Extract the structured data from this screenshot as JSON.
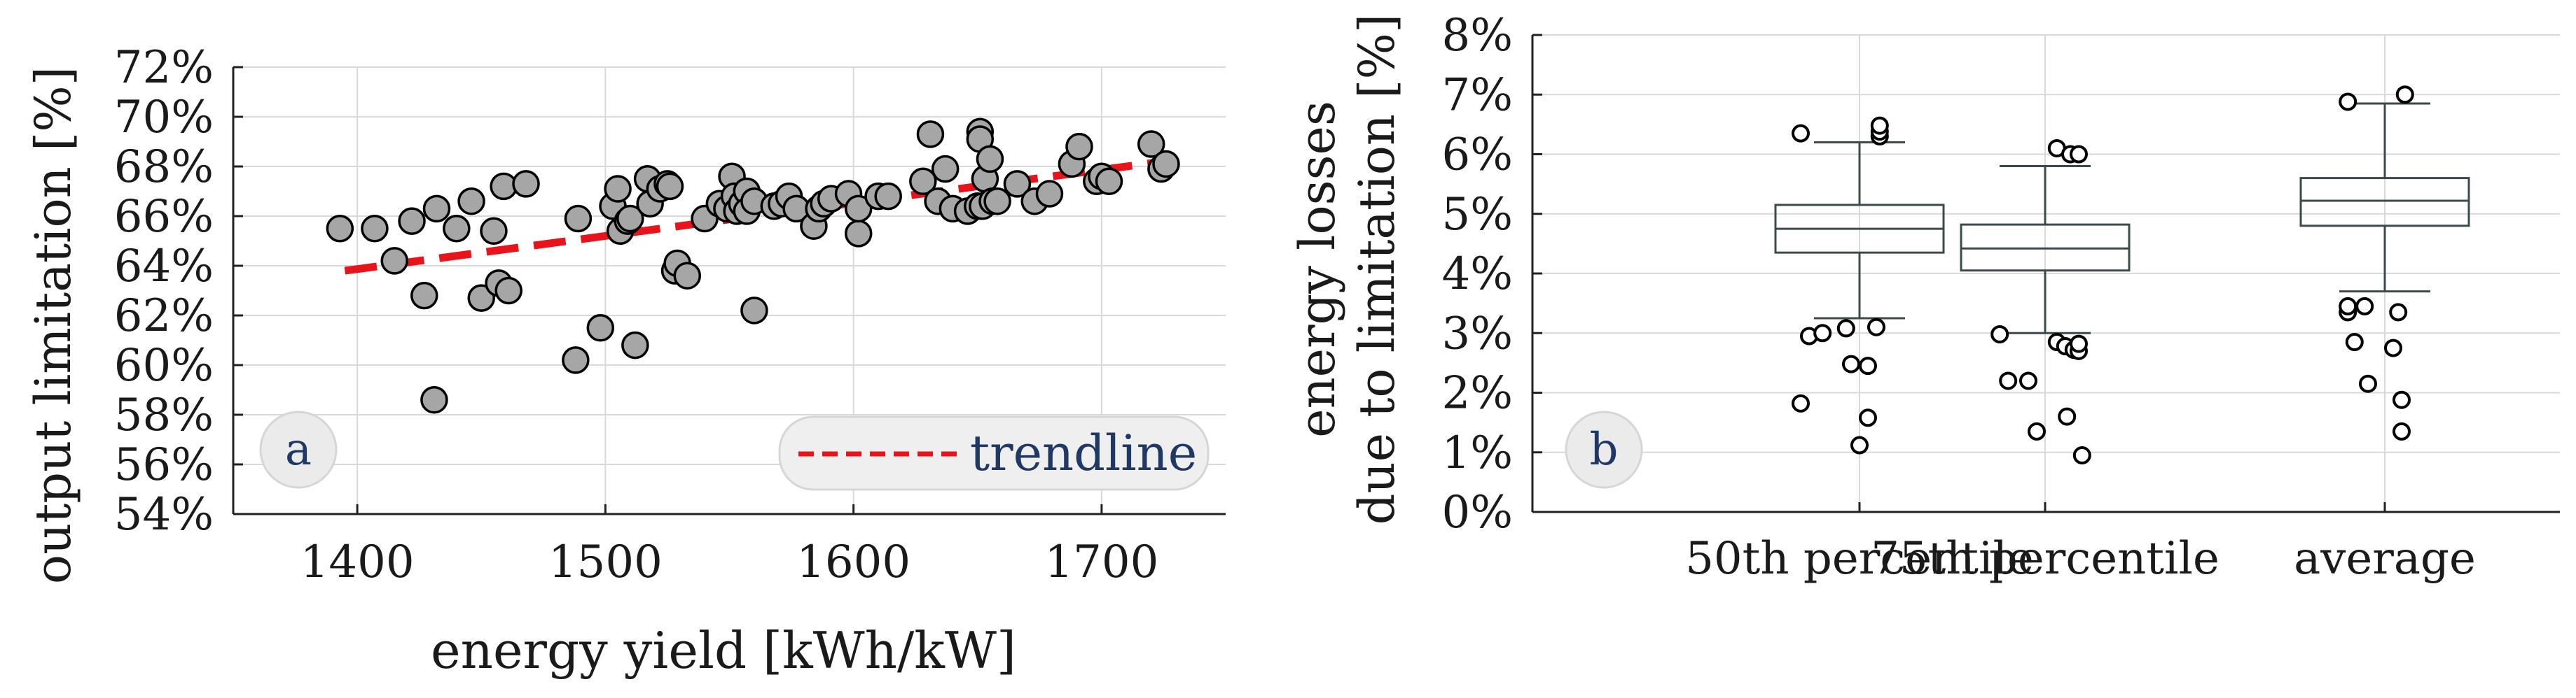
{
  "chart_data": [
    {
      "type": "scatter",
      "panel_label": "a",
      "xlabel": "energy yield [kWh/kW]",
      "ylabel": "output limitation [%]",
      "xlim": [
        1350,
        1750
      ],
      "ylim": [
        54,
        72
      ],
      "x_ticks": [
        1400,
        1500,
        1600,
        1700
      ],
      "x_tick_labels": [
        "1400",
        "1500",
        "1600",
        "1700"
      ],
      "y_ticks": [
        54,
        56,
        58,
        60,
        62,
        64,
        66,
        68,
        70,
        72
      ],
      "y_tick_labels": [
        "54%",
        "56%",
        "58%",
        "60%",
        "62%",
        "64%",
        "66%",
        "68%",
        "70%",
        "72%"
      ],
      "grid": true,
      "legend": {
        "position": "bottom-right",
        "entries": [
          "trendline"
        ]
      },
      "trendline": {
        "x": [
          1395,
          1725
        ],
        "y": [
          63.8,
          68.2
        ],
        "color": "#e8141b"
      },
      "points": [
        [
          1393,
          65.5
        ],
        [
          1407,
          65.5
        ],
        [
          1415,
          64.2
        ],
        [
          1422,
          65.8
        ],
        [
          1427,
          62.8
        ],
        [
          1431,
          58.6
        ],
        [
          1432,
          66.3
        ],
        [
          1440,
          65.5
        ],
        [
          1446,
          66.6
        ],
        [
          1450,
          62.7
        ],
        [
          1455,
          65.4
        ],
        [
          1457,
          63.3
        ],
        [
          1459,
          67.2
        ],
        [
          1461,
          63.0
        ],
        [
          1468,
          67.3
        ],
        [
          1488,
          60.2
        ],
        [
          1489,
          65.9
        ],
        [
          1498,
          61.5
        ],
        [
          1503,
          66.4
        ],
        [
          1505,
          67.1
        ],
        [
          1506,
          65.4
        ],
        [
          1509,
          65.8
        ],
        [
          1510,
          65.9
        ],
        [
          1512,
          60.8
        ],
        [
          1517,
          67.5
        ],
        [
          1518,
          66.5
        ],
        [
          1522,
          67.1
        ],
        [
          1525,
          67.3
        ],
        [
          1526,
          67.2
        ],
        [
          1528,
          63.8
        ],
        [
          1529,
          64.1
        ],
        [
          1533,
          63.6
        ],
        [
          1540,
          65.9
        ],
        [
          1546,
          66.5
        ],
        [
          1549,
          66.3
        ],
        [
          1551,
          67.6
        ],
        [
          1552,
          66.8
        ],
        [
          1553,
          66.2
        ],
        [
          1555,
          66.5
        ],
        [
          1557,
          67.0
        ],
        [
          1557,
          66.2
        ],
        [
          1560,
          66.6
        ],
        [
          1560,
          62.2
        ],
        [
          1568,
          66.4
        ],
        [
          1571,
          66.5
        ],
        [
          1574,
          66.8
        ],
        [
          1577,
          66.3
        ],
        [
          1584,
          65.6
        ],
        [
          1586,
          66.3
        ],
        [
          1588,
          66.5
        ],
        [
          1591,
          66.7
        ],
        [
          1598,
          66.9
        ],
        [
          1602,
          65.3
        ],
        [
          1602,
          66.3
        ],
        [
          1610,
          66.8
        ],
        [
          1614,
          66.8
        ],
        [
          1628,
          67.4
        ],
        [
          1631,
          69.3
        ],
        [
          1634,
          66.6
        ],
        [
          1637,
          67.9
        ],
        [
          1640,
          66.3
        ],
        [
          1646,
          66.2
        ],
        [
          1650,
          66.4
        ],
        [
          1651,
          69.4
        ],
        [
          1651,
          69.1
        ],
        [
          1652,
          66.4
        ],
        [
          1653,
          67.5
        ],
        [
          1655,
          68.3
        ],
        [
          1656,
          66.6
        ],
        [
          1658,
          66.6
        ],
        [
          1666,
          67.3
        ],
        [
          1673,
          66.6
        ],
        [
          1679,
          66.9
        ],
        [
          1688,
          68.1
        ],
        [
          1691,
          68.8
        ],
        [
          1698,
          67.4
        ],
        [
          1700,
          67.6
        ],
        [
          1703,
          67.4
        ],
        [
          1720,
          68.9
        ],
        [
          1724,
          67.9
        ],
        [
          1726,
          68.1
        ]
      ]
    },
    {
      "type": "box",
      "panel_label": "b",
      "ylabel_lines": [
        "energy losses",
        "due to limitation [%]"
      ],
      "ylim": [
        0,
        8
      ],
      "y_ticks": [
        0,
        1,
        2,
        3,
        4,
        5,
        6,
        7,
        8
      ],
      "y_tick_labels": [
        "0%",
        "1%",
        "2%",
        "3%",
        "4%",
        "5%",
        "6%",
        "7%",
        "8%"
      ],
      "grid": true,
      "categories": [
        "50th percentile",
        "75th percentile",
        "average"
      ],
      "boxes": [
        {
          "whisker_low": 3.25,
          "q1": 4.35,
          "median": 4.75,
          "q3": 5.15,
          "whisker_high": 6.2,
          "outliers": [
            [
              -0.35,
              6.35
            ],
            [
              -0.35,
              1.82
            ],
            [
              -0.3,
              2.95
            ],
            [
              -0.22,
              3.0
            ],
            [
              -0.08,
              3.08
            ],
            [
              -0.05,
              2.48
            ],
            [
              0.0,
              1.12
            ],
            [
              0.05,
              2.45
            ],
            [
              0.05,
              1.58
            ],
            [
              0.1,
              3.1
            ],
            [
              0.12,
              6.3
            ],
            [
              0.12,
              6.38
            ],
            [
              0.12,
              6.48
            ]
          ]
        },
        {
          "whisker_low": 3.0,
          "q1": 4.05,
          "median": 4.42,
          "q3": 4.82,
          "whisker_high": 5.8,
          "outliers": [
            [
              -0.27,
              2.98
            ],
            [
              -0.22,
              2.2
            ],
            [
              -0.1,
              2.2
            ],
            [
              -0.05,
              1.35
            ],
            [
              0.07,
              6.1
            ],
            [
              0.07,
              2.85
            ],
            [
              0.12,
              2.78
            ],
            [
              0.13,
              1.6
            ],
            [
              0.15,
              6.0
            ],
            [
              0.17,
              2.72
            ],
            [
              0.2,
              6.0
            ],
            [
              0.2,
              2.7
            ],
            [
              0.2,
              2.82
            ],
            [
              0.22,
              0.95
            ]
          ]
        },
        {
          "whisker_low": 3.7,
          "q1": 4.8,
          "median": 5.22,
          "q3": 5.6,
          "whisker_high": 6.85,
          "outliers": [
            [
              -0.22,
              6.88
            ],
            [
              -0.22,
              3.35
            ],
            [
              -0.22,
              3.45
            ],
            [
              -0.18,
              2.85
            ],
            [
              -0.12,
              3.45
            ],
            [
              -0.1,
              2.15
            ],
            [
              0.05,
              2.75
            ],
            [
              0.08,
              3.35
            ],
            [
              0.1,
              1.88
            ],
            [
              0.1,
              1.35
            ],
            [
              0.12,
              7.0
            ]
          ]
        }
      ]
    }
  ]
}
